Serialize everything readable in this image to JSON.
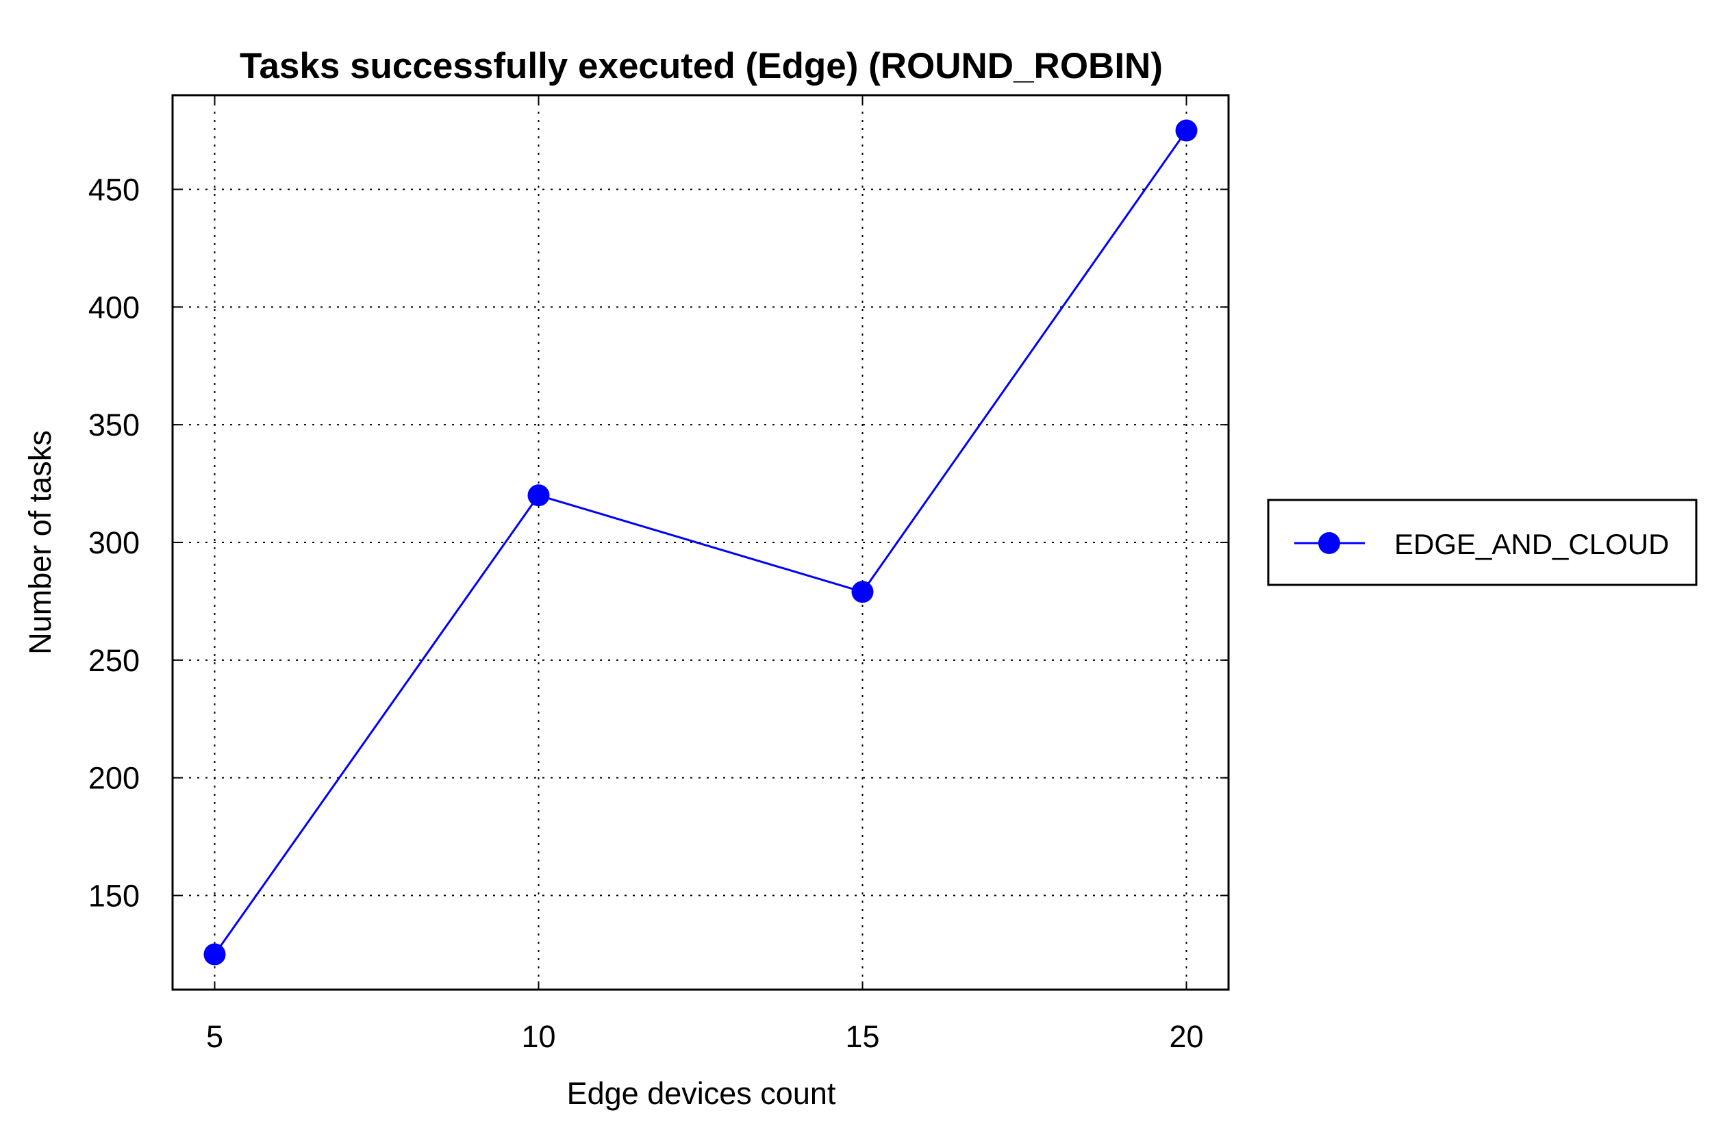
{
  "chart_data": {
    "type": "line",
    "title": "Tasks successfully executed (Edge) (ROUND_ROBIN)",
    "xlabel": "Edge devices count",
    "ylabel": "Number of tasks",
    "x": [
      5,
      10,
      15,
      20
    ],
    "xticks": [
      "5",
      "10",
      "15",
      "20"
    ],
    "yticks": [
      "150",
      "200",
      "250",
      "300",
      "350",
      "400",
      "450"
    ],
    "ytick_values": [
      150,
      200,
      250,
      300,
      350,
      400,
      450
    ],
    "xlim": [
      4.35,
      20.65
    ],
    "ylim": [
      110,
      490
    ],
    "grid": true,
    "legend_position": "right",
    "series": [
      {
        "name": "EDGE_AND_CLOUD",
        "color": "#0000ff",
        "marker": "circle",
        "values": [
          125,
          320,
          279,
          475
        ]
      }
    ]
  }
}
